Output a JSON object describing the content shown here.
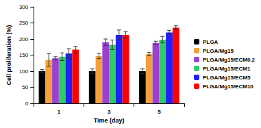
{
  "chart_data": {
    "type": "bar",
    "x_label": "Time (day)",
    "y_label": "Cell proliferation (%)",
    "categories": [
      "1",
      "3",
      "5"
    ],
    "series": [
      {
        "name": "PLGA",
        "color": "#000000",
        "values": [
          100,
          100,
          100
        ],
        "errors": [
          5,
          7,
          7
        ]
      },
      {
        "name": "PLGA/Mg15",
        "color": "#f5a03c",
        "values": [
          135,
          147,
          153
        ],
        "errors": [
          20,
          8,
          5
        ]
      },
      {
        "name": "PLGA/Mg15/ECM0.2",
        "color": "#9b40d0",
        "values": [
          140,
          190,
          188
        ],
        "errors": [
          5,
          10,
          5
        ]
      },
      {
        "name": "PLGA/Mg15/ECM1",
        "color": "#2ecc66",
        "values": [
          145,
          182,
          198
        ],
        "errors": [
          12,
          15,
          10
        ]
      },
      {
        "name": "PLGA/Mg15/ECM5",
        "color": "#1f1fff",
        "values": [
          155,
          213,
          220
        ],
        "errors": [
          15,
          15,
          7
        ]
      },
      {
        "name": "PLGA/Mg15/ECM10",
        "color": "#ff0000",
        "values": [
          167,
          213,
          235
        ],
        "errors": [
          10,
          10,
          6
        ]
      }
    ],
    "ylim": [
      0,
      300
    ],
    "yticks": [
      0,
      50,
      100,
      150,
      200,
      250,
      300
    ],
    "grid": false,
    "legend": "right"
  }
}
